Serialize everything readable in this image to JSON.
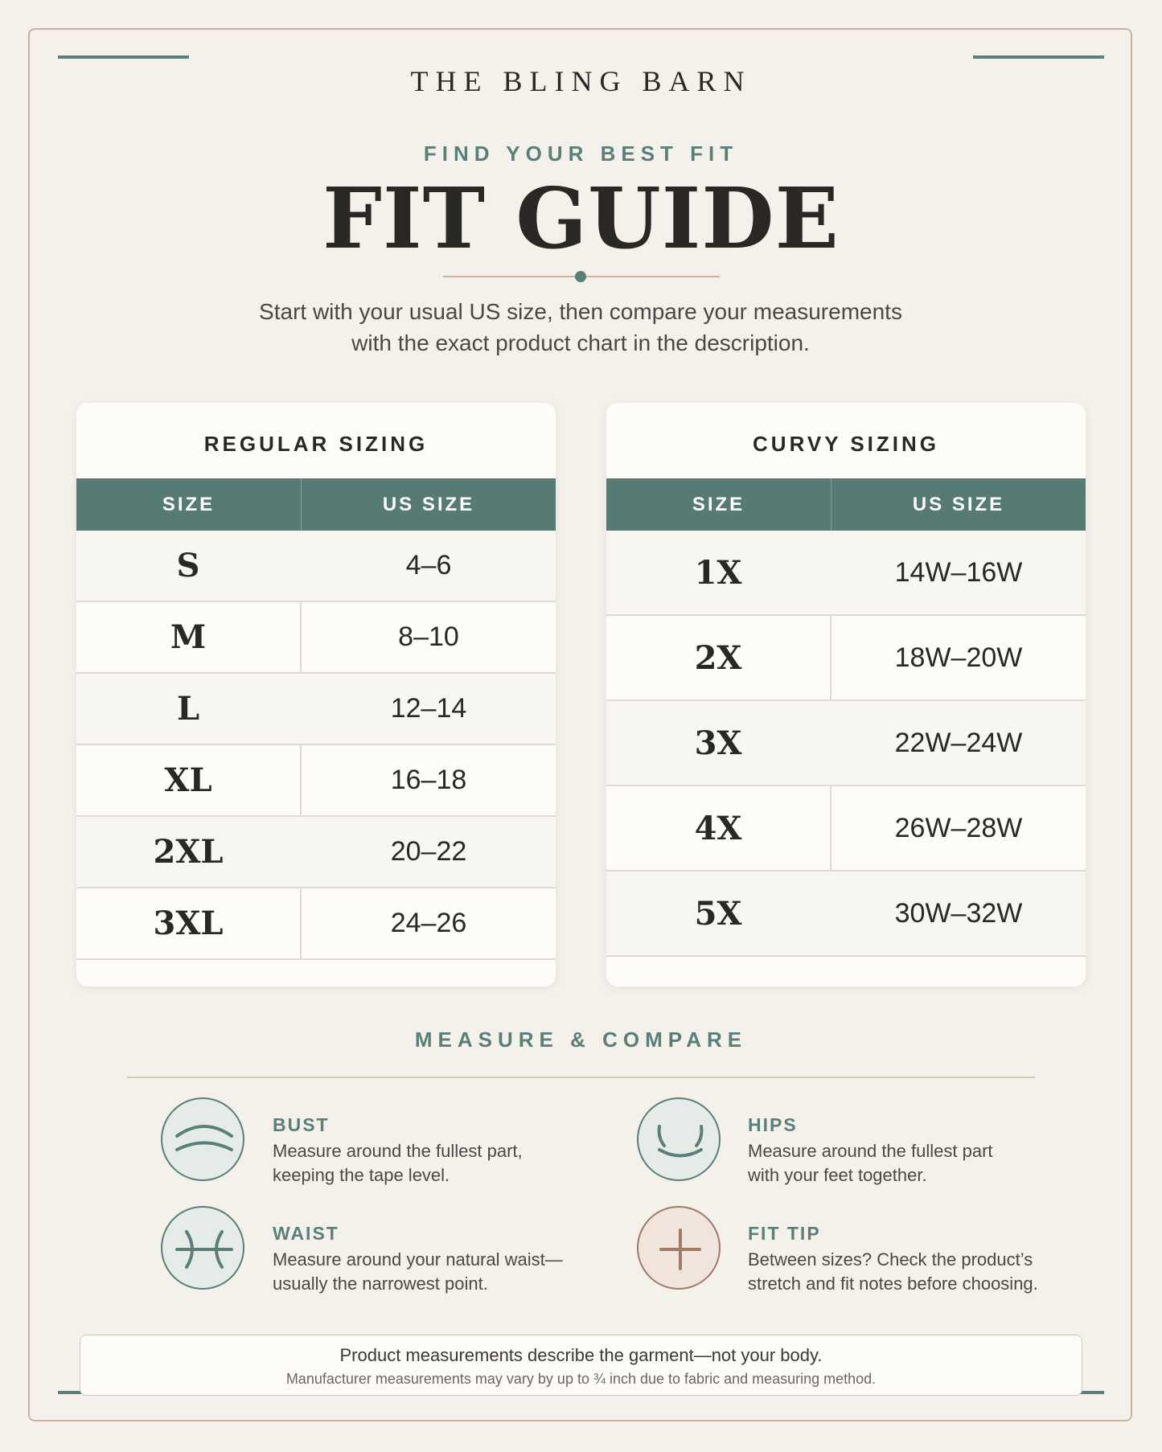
{
  "brand": "THE BLING BARN",
  "eyebrow": "FIND YOUR BEST FIT",
  "title": "FIT GUIDE",
  "intro": {
    "line1": "Start with your usual US size, then compare your measurements",
    "line2": "with the exact product chart in the description."
  },
  "regular": {
    "title": "REGULAR SIZING",
    "headers": {
      "size": "SIZE",
      "us_size": "US SIZE"
    },
    "rows": [
      {
        "size": "S",
        "us": "4–6"
      },
      {
        "size": "M",
        "us": "8–10"
      },
      {
        "size": "L",
        "us": "12–14"
      },
      {
        "size": "XL",
        "us": "16–18"
      },
      {
        "size": "2XL",
        "us": "20–22"
      },
      {
        "size": "3XL",
        "us": "24–26"
      }
    ]
  },
  "curvy": {
    "title": "CURVY SIZING",
    "headers": {
      "size": "SIZE",
      "us_size": "US SIZE"
    },
    "rows": [
      {
        "size": "1X",
        "us": "14W–16W"
      },
      {
        "size": "2X",
        "us": "18W–20W"
      },
      {
        "size": "3X",
        "us": "22W–24W"
      },
      {
        "size": "4X",
        "us": "26W–28W"
      },
      {
        "size": "5X",
        "us": "30W–32W"
      }
    ]
  },
  "measure": {
    "heading": "MEASURE & COMPARE",
    "items": [
      {
        "label": "BUST",
        "icon": "bust-icon",
        "line1": "Measure around the fullest part,",
        "line2": "keeping the tape level."
      },
      {
        "label": "HIPS",
        "icon": "hips-icon",
        "line1": "Measure around the fullest part",
        "line2": "with your feet together."
      },
      {
        "label": "WAIST",
        "icon": "waist-icon",
        "line1": "Measure around your natural waist—",
        "line2": "usually the narrowest point."
      },
      {
        "label": "FIT TIP",
        "icon": "plus-icon",
        "line1": "Between sizes? Check the product’s",
        "line2": "stretch and fit notes before choosing."
      }
    ]
  },
  "footer": {
    "main": "Product measurements describe the garment—not your body.",
    "sub": "Manufacturer measurements may vary by up to ¾ inch due to fabric and measuring method."
  },
  "colors": {
    "accent": "#5a7f79",
    "header_fill": "#567b75",
    "border": "#c9b49f",
    "background": "#f4f1eb",
    "tip_accent": "#a07b65"
  }
}
